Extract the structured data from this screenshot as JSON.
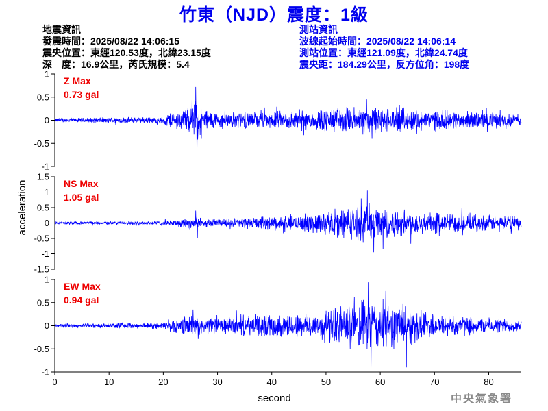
{
  "title": "竹東（NJD）震度：1級",
  "event_info": {
    "heading": "地震資訊",
    "origin_time": "發震時間：2025/08/22 14:06:15",
    "epicenter": "震央位置：東經120.53度，北緯23.15度",
    "depth_magnitude": "深　度：16.9公里，芮氏規模：5.4"
  },
  "station_info": {
    "heading": "測站資訊",
    "wave_start": "波線起始時間：2025/08/22 14:06:14",
    "station_location": "測站位置：東經121.09度，北緯24.74度",
    "distance": "震央距：184.29公里，反方位角：198度"
  },
  "signature": "中央氣象署",
  "colors": {
    "title": "#0000ee",
    "trace": "#0000ff",
    "channel_label": "#ee0000",
    "station_info": "#0000ee",
    "signature": "#8a8a8a"
  },
  "chart_data": {
    "type": "line",
    "xlabel": "second",
    "ylabel": "acceleration",
    "xlim": [
      0,
      86
    ],
    "xticks": [
      0,
      10,
      20,
      30,
      40,
      50,
      60,
      70,
      80
    ],
    "grid": false,
    "panels": [
      {
        "name": "Z",
        "label": "Z Max",
        "max_text": "0.73 gal",
        "max_gal": 0.73,
        "ylim": [
          -1,
          1
        ],
        "yticks": [
          1,
          0.5,
          0,
          -0.5,
          -1
        ],
        "envelope": [
          [
            0,
            0.05
          ],
          [
            10,
            0.07
          ],
          [
            20,
            0.08
          ],
          [
            21,
            0.2
          ],
          [
            25,
            0.3
          ],
          [
            26,
            0.55
          ],
          [
            27,
            0.3
          ],
          [
            30,
            0.2
          ],
          [
            35,
            0.2
          ],
          [
            40,
            0.22
          ],
          [
            45,
            0.25
          ],
          [
            50,
            0.3
          ],
          [
            57,
            0.35
          ],
          [
            62,
            0.3
          ],
          [
            70,
            0.25
          ],
          [
            80,
            0.2
          ],
          [
            86,
            0.15
          ]
        ],
        "peaks": [
          {
            "x": 26,
            "y": 0.72
          },
          {
            "x": 26.2,
            "y": -0.75
          },
          {
            "x": 25.3,
            "y": 0.45
          },
          {
            "x": 27,
            "y": -0.4
          },
          {
            "x": 57.5,
            "y": 0.45
          },
          {
            "x": 58.5,
            "y": -0.4
          }
        ]
      },
      {
        "name": "NS",
        "label": "NS Max",
        "max_text": "1.05 gal",
        "max_gal": 1.05,
        "ylim": [
          -1.5,
          1.5
        ],
        "yticks": [
          1.5,
          1,
          0.5,
          0,
          -0.5,
          -1,
          -1.5
        ],
        "envelope": [
          [
            0,
            0.05
          ],
          [
            10,
            0.06
          ],
          [
            20,
            0.08
          ],
          [
            22,
            0.1
          ],
          [
            25,
            0.25
          ],
          [
            27,
            0.15
          ],
          [
            30,
            0.15
          ],
          [
            35,
            0.2
          ],
          [
            40,
            0.25
          ],
          [
            45,
            0.3
          ],
          [
            50,
            0.45
          ],
          [
            55,
            0.6
          ],
          [
            58,
            0.7
          ],
          [
            62,
            0.55
          ],
          [
            67,
            0.45
          ],
          [
            75,
            0.35
          ],
          [
            80,
            0.3
          ],
          [
            86,
            0.25
          ]
        ],
        "peaks": [
          {
            "x": 57.6,
            "y": 1.05
          },
          {
            "x": 58.8,
            "y": -0.95
          },
          {
            "x": 56.5,
            "y": 0.8
          },
          {
            "x": 60.5,
            "y": -0.85
          },
          {
            "x": 26,
            "y": 0.4
          },
          {
            "x": 26.3,
            "y": -0.5
          }
        ]
      },
      {
        "name": "EW",
        "label": "EW Max",
        "max_text": "0.94 gal",
        "max_gal": 0.94,
        "ylim": [
          -1,
          1
        ],
        "yticks": [
          1,
          0.5,
          0,
          -0.5,
          -1
        ],
        "envelope": [
          [
            0,
            0.04
          ],
          [
            10,
            0.06
          ],
          [
            20,
            0.08
          ],
          [
            21,
            0.15
          ],
          [
            25,
            0.25
          ],
          [
            27,
            0.2
          ],
          [
            30,
            0.2
          ],
          [
            35,
            0.25
          ],
          [
            40,
            0.3
          ],
          [
            45,
            0.3
          ],
          [
            50,
            0.4
          ],
          [
            55,
            0.55
          ],
          [
            58,
            0.65
          ],
          [
            63,
            0.55
          ],
          [
            66,
            0.45
          ],
          [
            70,
            0.3
          ],
          [
            75,
            0.25
          ],
          [
            80,
            0.2
          ],
          [
            86,
            0.15
          ]
        ],
        "peaks": [
          {
            "x": 57.8,
            "y": 0.94
          },
          {
            "x": 58.3,
            "y": -0.92
          },
          {
            "x": 64.8,
            "y": -0.9
          },
          {
            "x": 61,
            "y": 0.75
          },
          {
            "x": 25.5,
            "y": 0.35
          }
        ]
      }
    ]
  }
}
